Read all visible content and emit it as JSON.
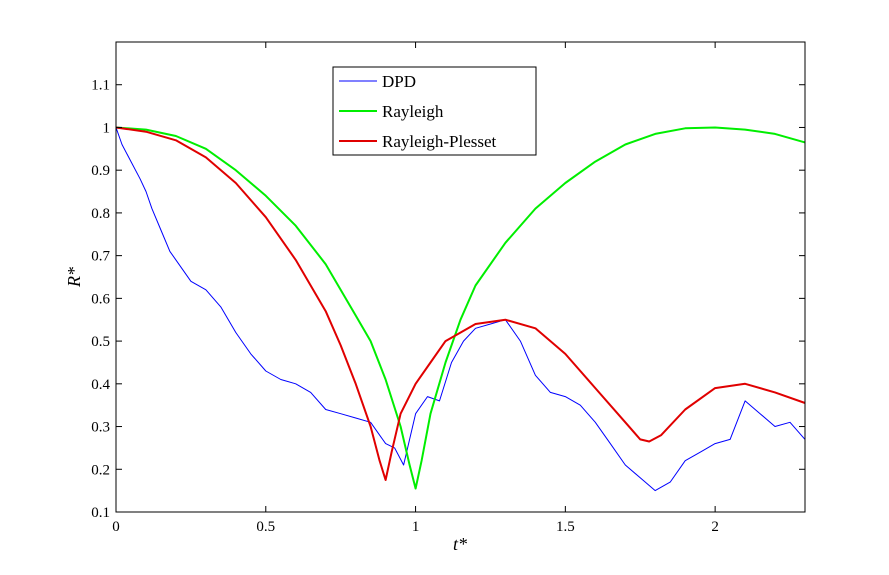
{
  "chart_data": {
    "type": "line",
    "xlabel": "t*",
    "ylabel": "R*",
    "xlim": [
      0,
      2.3
    ],
    "ylim": [
      0.1,
      1.2
    ],
    "x_ticks": [
      "0",
      "0.5",
      "1",
      "1.5",
      "2"
    ],
    "y_ticks": [
      "0.1",
      "0.2",
      "0.3",
      "0.4",
      "0.5",
      "0.6",
      "0.7",
      "0.8",
      "0.9",
      "1",
      "1.1"
    ],
    "grid": false,
    "legend_position": "top-center",
    "series": [
      {
        "name": "DPD",
        "color": "#0000ff",
        "x": [
          0,
          0.02,
          0.05,
          0.08,
          0.1,
          0.12,
          0.15,
          0.18,
          0.2,
          0.25,
          0.3,
          0.35,
          0.4,
          0.45,
          0.5,
          0.55,
          0.6,
          0.65,
          0.7,
          0.75,
          0.8,
          0.85,
          0.9,
          0.93,
          0.96,
          1.0,
          1.04,
          1.08,
          1.12,
          1.16,
          1.2,
          1.25,
          1.3,
          1.35,
          1.4,
          1.45,
          1.5,
          1.55,
          1.6,
          1.65,
          1.7,
          1.75,
          1.8,
          1.85,
          1.9,
          1.95,
          2.0,
          2.05,
          2.1,
          2.15,
          2.2,
          2.25,
          2.3
        ],
        "y": [
          1.0,
          0.96,
          0.92,
          0.88,
          0.85,
          0.81,
          0.76,
          0.71,
          0.69,
          0.64,
          0.62,
          0.58,
          0.52,
          0.47,
          0.43,
          0.41,
          0.4,
          0.38,
          0.34,
          0.33,
          0.32,
          0.31,
          0.26,
          0.25,
          0.21,
          0.33,
          0.37,
          0.36,
          0.45,
          0.5,
          0.53,
          0.54,
          0.55,
          0.5,
          0.42,
          0.38,
          0.37,
          0.35,
          0.31,
          0.26,
          0.21,
          0.18,
          0.15,
          0.17,
          0.22,
          0.24,
          0.26,
          0.27,
          0.36,
          0.33,
          0.3,
          0.31,
          0.27
        ]
      },
      {
        "name": "Rayleigh",
        "color": "#00ee00",
        "x": [
          0,
          0.1,
          0.2,
          0.3,
          0.4,
          0.5,
          0.6,
          0.7,
          0.8,
          0.85,
          0.9,
          0.95,
          0.98,
          1.0,
          1.02,
          1.05,
          1.1,
          1.15,
          1.2,
          1.3,
          1.4,
          1.5,
          1.6,
          1.7,
          1.8,
          1.9,
          2.0,
          2.1,
          2.2,
          2.3
        ],
        "y": [
          1.0,
          0.995,
          0.98,
          0.95,
          0.9,
          0.84,
          0.77,
          0.68,
          0.56,
          0.5,
          0.41,
          0.3,
          0.21,
          0.155,
          0.22,
          0.33,
          0.45,
          0.55,
          0.63,
          0.73,
          0.81,
          0.87,
          0.92,
          0.96,
          0.985,
          0.998,
          1.0,
          0.995,
          0.985,
          0.965
        ]
      },
      {
        "name": "Rayleigh-Plesset",
        "color": "#e00000",
        "x": [
          0,
          0.1,
          0.2,
          0.3,
          0.4,
          0.5,
          0.6,
          0.7,
          0.75,
          0.8,
          0.85,
          0.88,
          0.9,
          0.92,
          0.95,
          1.0,
          1.05,
          1.1,
          1.2,
          1.3,
          1.4,
          1.5,
          1.6,
          1.7,
          1.75,
          1.78,
          1.82,
          1.9,
          2.0,
          2.1,
          2.2,
          2.3
        ],
        "y": [
          1.0,
          0.99,
          0.97,
          0.93,
          0.87,
          0.79,
          0.69,
          0.57,
          0.49,
          0.4,
          0.3,
          0.22,
          0.175,
          0.24,
          0.33,
          0.4,
          0.45,
          0.5,
          0.54,
          0.55,
          0.53,
          0.47,
          0.39,
          0.31,
          0.27,
          0.265,
          0.28,
          0.34,
          0.39,
          0.4,
          0.38,
          0.355
        ]
      }
    ]
  }
}
